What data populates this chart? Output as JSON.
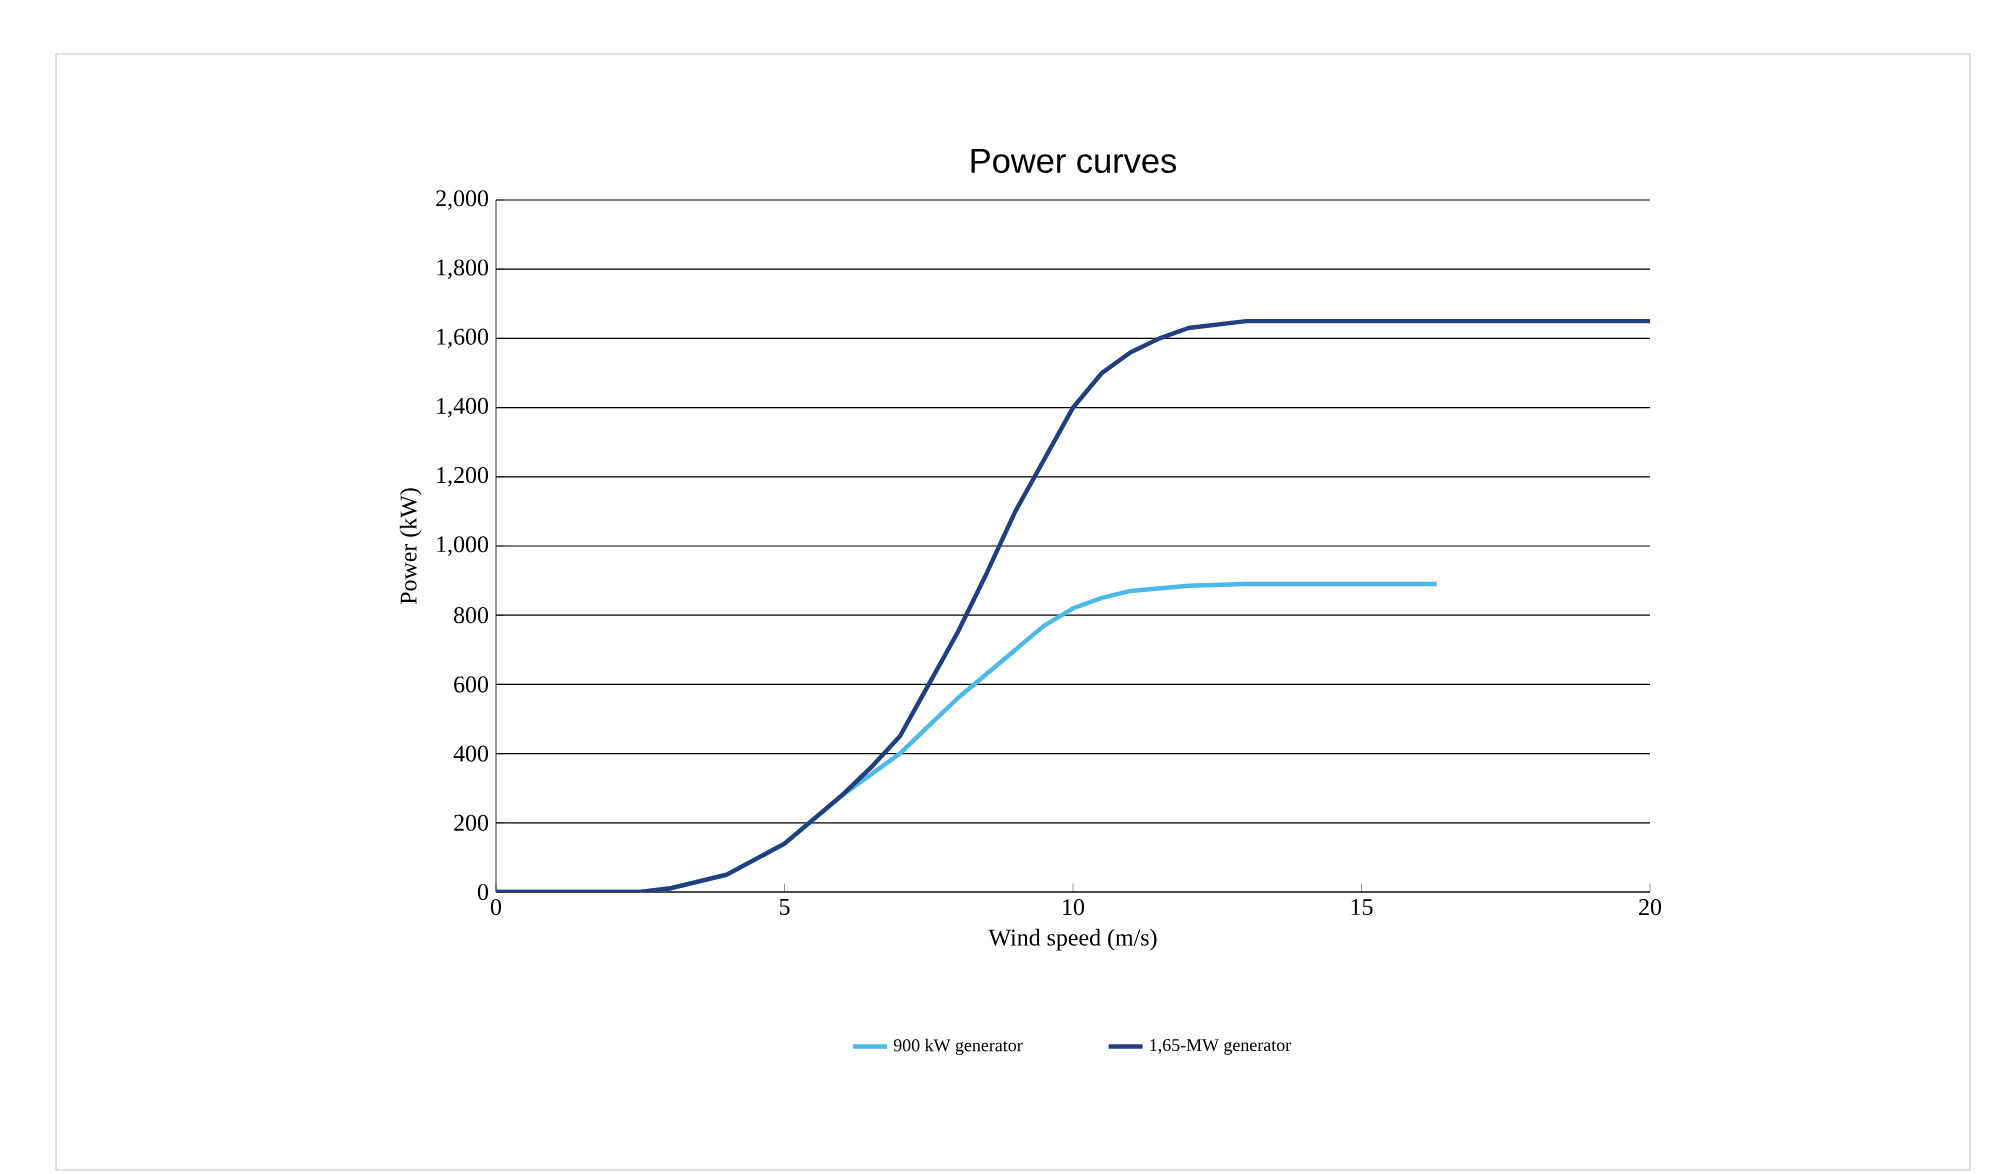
{
  "chart_data": {
    "type": "line",
    "title": "Power curves",
    "xlabel": "Wind speed (m/s)",
    "ylabel": "Power (kW)",
    "xlim": [
      0,
      20
    ],
    "ylim": [
      0,
      2000
    ],
    "xticks": [
      0,
      5,
      10,
      15,
      20
    ],
    "yticks": [
      {
        "value": 0,
        "label": "0"
      },
      {
        "value": 200,
        "label": "200"
      },
      {
        "value": 400,
        "label": "400"
      },
      {
        "value": 600,
        "label": "600"
      },
      {
        "value": 800,
        "label": "800"
      },
      {
        "value": 1000,
        "label": "1,000"
      },
      {
        "value": 1200,
        "label": "1,200"
      },
      {
        "value": 1400,
        "label": "1,400"
      },
      {
        "value": 1600,
        "label": "1,600"
      },
      {
        "value": 1800,
        "label": "1,800"
      },
      {
        "value": 2000,
        "label": "2,000"
      }
    ],
    "grid": "y",
    "legend": "bottom",
    "marker": "none",
    "line_style": "solid",
    "series": [
      {
        "name": "900 kW generator",
        "color": "#4db8ea",
        "x": [
          0,
          2.5,
          3,
          4,
          5,
          5.5,
          6,
          6.5,
          7,
          7.5,
          8,
          8.5,
          9,
          9.5,
          10,
          10.5,
          11,
          12,
          13,
          14,
          15,
          16.3
        ],
        "values": [
          0,
          0,
          10,
          50,
          140,
          210,
          280,
          340,
          400,
          480,
          560,
          630,
          700,
          770,
          820,
          850,
          870,
          885,
          890,
          890,
          890,
          890
        ]
      },
      {
        "name": "1,65-MW generator",
        "color": "#1f3f7f",
        "x": [
          0,
          2.5,
          3,
          4,
          5,
          5.5,
          6,
          6.5,
          7,
          7.5,
          8,
          8.5,
          9,
          9.5,
          10,
          10.5,
          11,
          11.5,
          12,
          13,
          14,
          16,
          18,
          20
        ],
        "values": [
          0,
          0,
          10,
          50,
          140,
          210,
          280,
          360,
          450,
          600,
          750,
          920,
          1100,
          1250,
          1400,
          1500,
          1560,
          1600,
          1630,
          1650,
          1650,
          1650,
          1650,
          1650
        ]
      }
    ]
  }
}
